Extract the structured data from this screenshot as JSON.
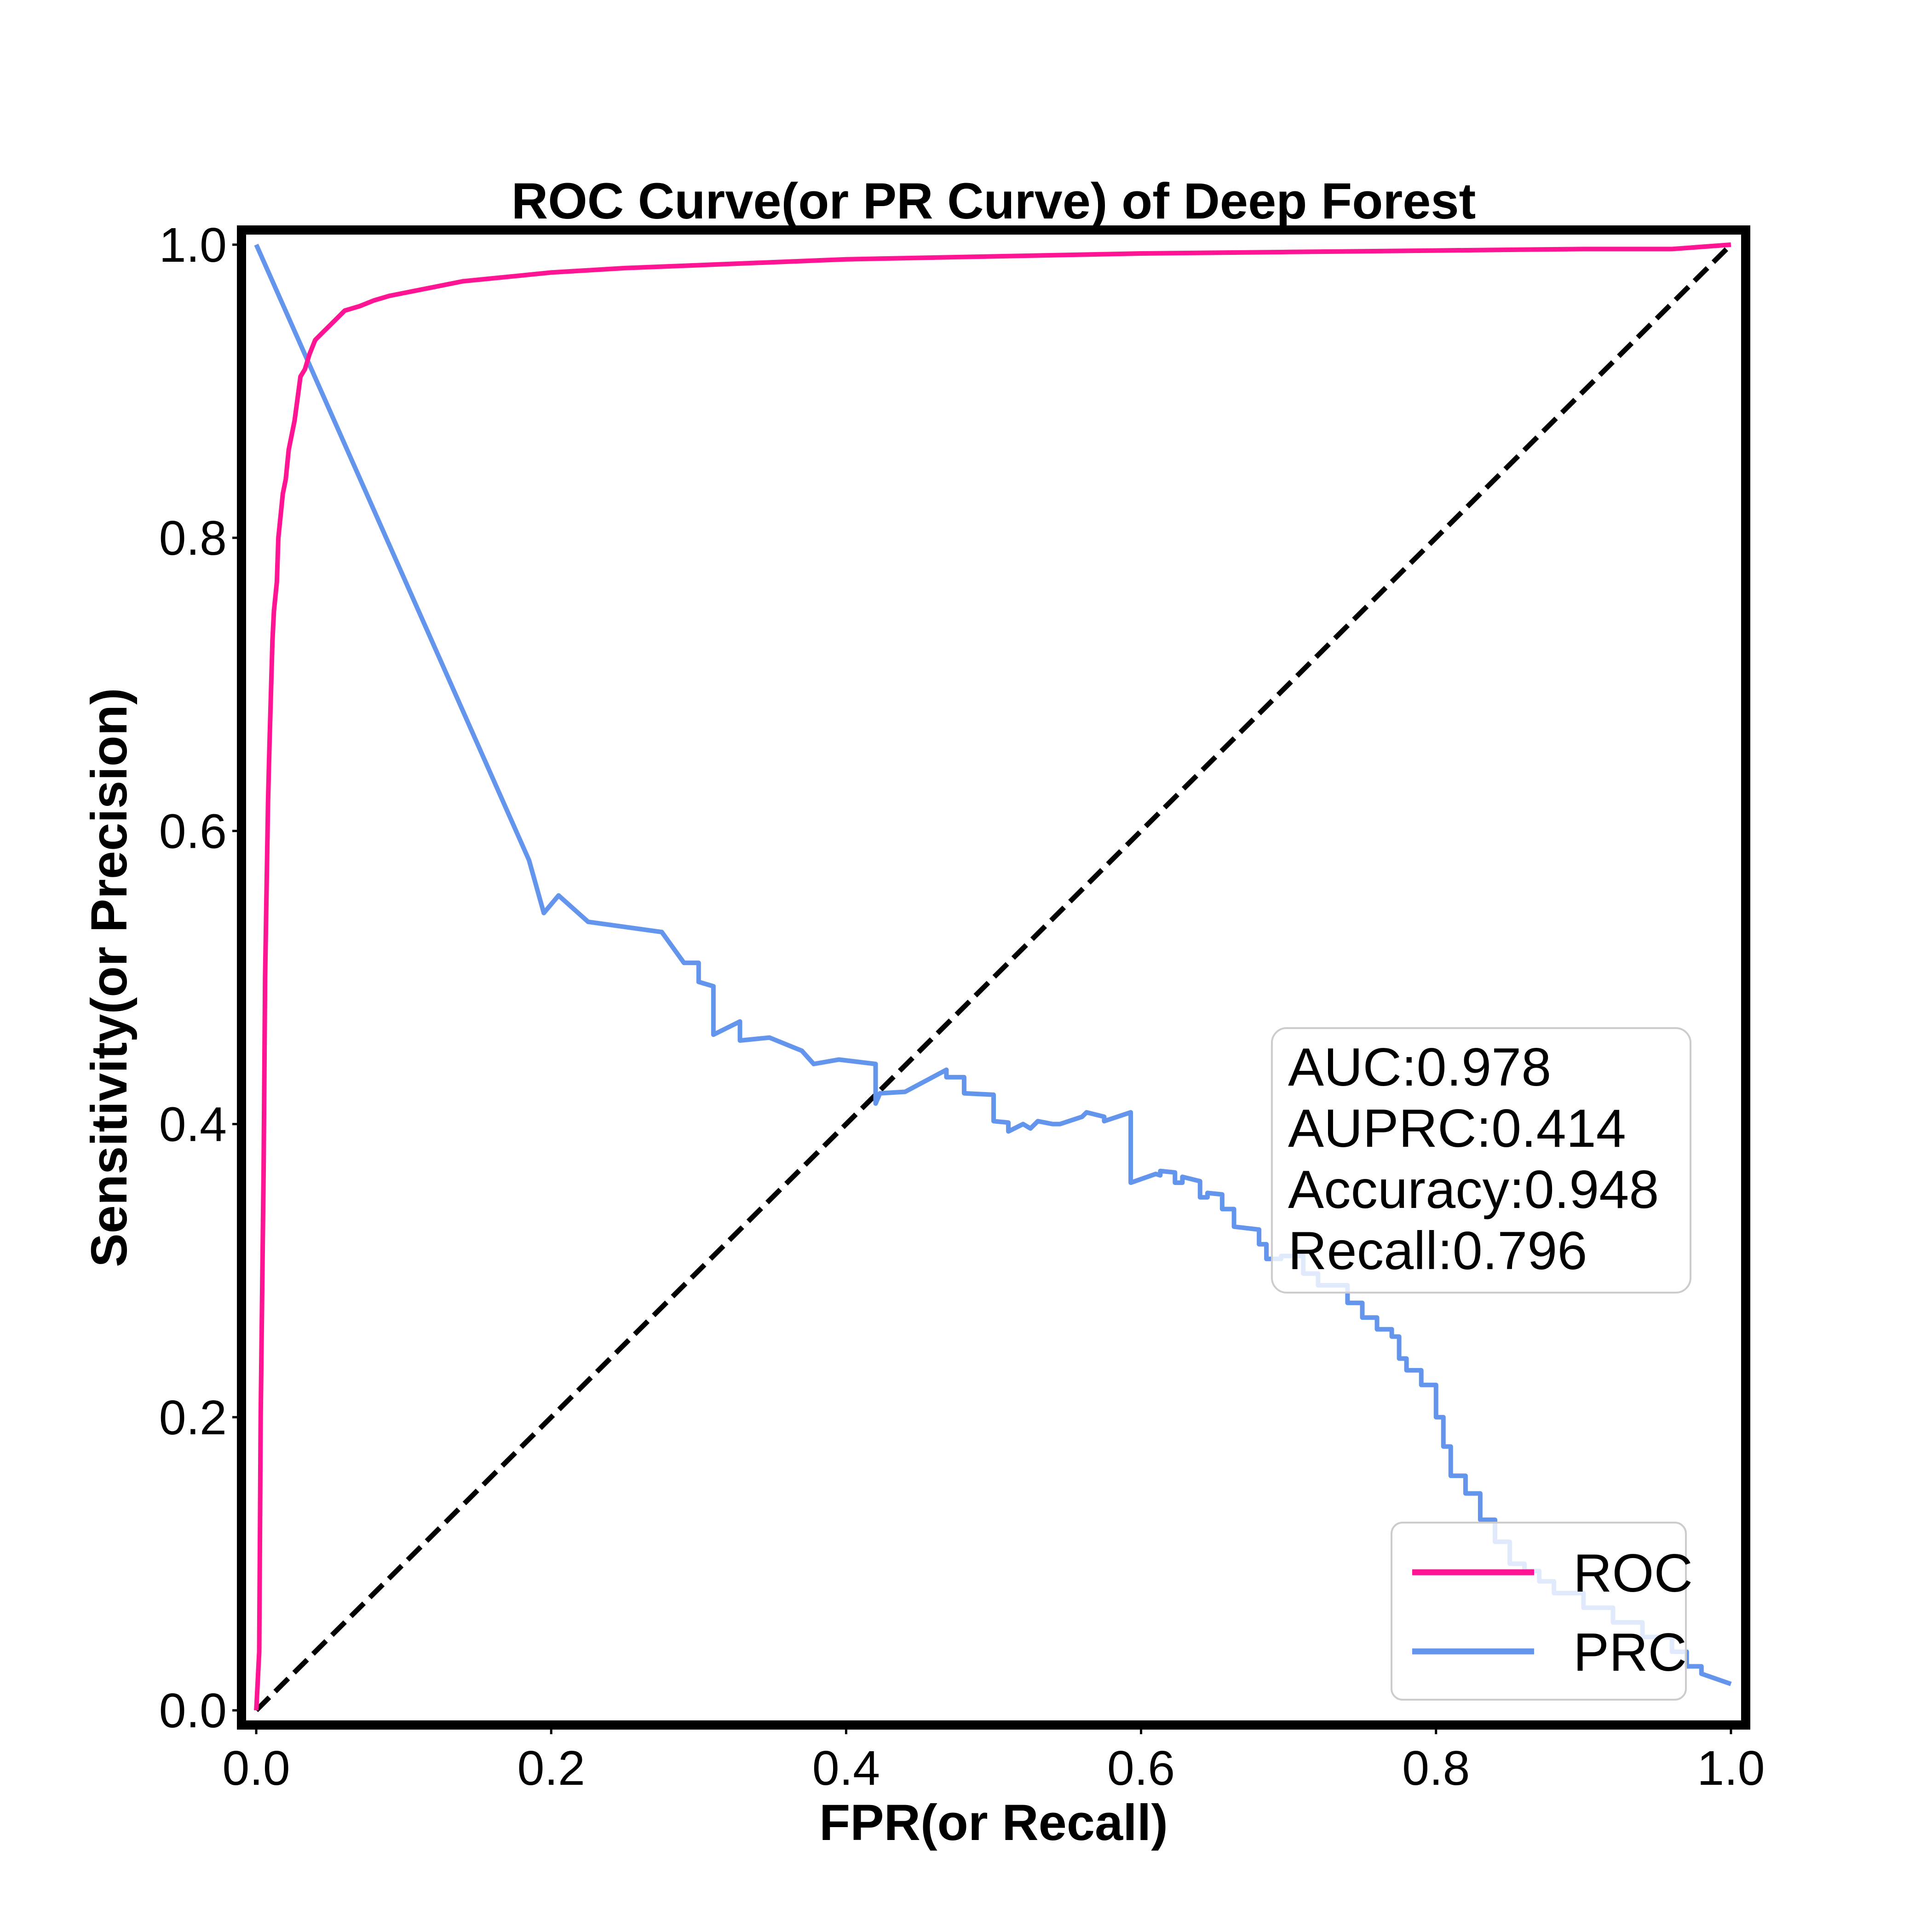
{
  "chart_data": {
    "type": "line",
    "title": "ROC Curve(or PR Curve) of Deep Forest",
    "xlabel": "FPR(or Recall)",
    "ylabel": "Sensitivity(or Precision)",
    "xlim": [
      -0.01,
      1.01
    ],
    "ylim": [
      -0.01,
      1.01
    ],
    "xticks": [
      0.0,
      0.2,
      0.4,
      0.6,
      0.8,
      1.0
    ],
    "yticks": [
      0.0,
      0.2,
      0.4,
      0.6,
      0.8,
      1.0
    ],
    "xtick_labels": [
      "0.0",
      "0.2",
      "0.4",
      "0.6",
      "0.8",
      "1.0"
    ],
    "ytick_labels": [
      "0.0",
      "0.2",
      "0.4",
      "0.6",
      "0.8",
      "1.0"
    ],
    "grid": false,
    "legend_position": "bottom-right",
    "series": [
      {
        "name": "ROC",
        "color": "#ff1493",
        "x": [
          0.0,
          0.002,
          0.003,
          0.005,
          0.006,
          0.008,
          0.009,
          0.011,
          0.012,
          0.014,
          0.015,
          0.017,
          0.018,
          0.02,
          0.022,
          0.024,
          0.026,
          0.028,
          0.03,
          0.033,
          0.036,
          0.04,
          0.045,
          0.05,
          0.055,
          0.06,
          0.07,
          0.08,
          0.09,
          0.1,
          0.12,
          0.14,
          0.16,
          0.18,
          0.2,
          0.25,
          0.3,
          0.35,
          0.4,
          0.5,
          0.6,
          0.7,
          0.8,
          0.9,
          0.96,
          1.0
        ],
        "y": [
          0.0,
          0.04,
          0.2,
          0.37,
          0.5,
          0.62,
          0.66,
          0.73,
          0.75,
          0.77,
          0.8,
          0.82,
          0.83,
          0.84,
          0.86,
          0.87,
          0.88,
          0.895,
          0.91,
          0.915,
          0.925,
          0.935,
          0.94,
          0.945,
          0.95,
          0.955,
          0.958,
          0.962,
          0.965,
          0.967,
          0.971,
          0.975,
          0.977,
          0.979,
          0.981,
          0.984,
          0.986,
          0.988,
          0.99,
          0.992,
          0.994,
          0.995,
          0.996,
          0.997,
          0.997,
          1.0
        ]
      },
      {
        "name": "PRC",
        "color": "#6495ed",
        "x": [
          0.0,
          0.185,
          0.195,
          0.205,
          0.225,
          0.275,
          0.29,
          0.3,
          0.3,
          0.31,
          0.31,
          0.328,
          0.328,
          0.348,
          0.37,
          0.378,
          0.395,
          0.42,
          0.42,
          0.423,
          0.44,
          0.468,
          0.468,
          0.48,
          0.48,
          0.5,
          0.5,
          0.51,
          0.51,
          0.52,
          0.525,
          0.53,
          0.54,
          0.545,
          0.56,
          0.563,
          0.575,
          0.575,
          0.593,
          0.593,
          0.61,
          0.613,
          0.613,
          0.623,
          0.623,
          0.628,
          0.628,
          0.64,
          0.64,
          0.645,
          0.645,
          0.655,
          0.655,
          0.663,
          0.663,
          0.68,
          0.68,
          0.685,
          0.685,
          0.695,
          0.695,
          0.71,
          0.71,
          0.72,
          0.72,
          0.74,
          0.74,
          0.75,
          0.75,
          0.76,
          0.76,
          0.77,
          0.77,
          0.775,
          0.775,
          0.78,
          0.78,
          0.79,
          0.79,
          0.8,
          0.8,
          0.805,
          0.805,
          0.81,
          0.81,
          0.82,
          0.82,
          0.83,
          0.83,
          0.84,
          0.84,
          0.85,
          0.85,
          0.86,
          0.86,
          0.87,
          0.87,
          0.88,
          0.88,
          0.9,
          0.9,
          0.92,
          0.92,
          0.94,
          0.94,
          0.96,
          0.96,
          0.97,
          0.97,
          0.98,
          0.98,
          1.0
        ],
        "y": [
          1.0,
          0.58,
          0.544,
          0.556,
          0.538,
          0.531,
          0.51,
          0.51,
          0.497,
          0.494,
          0.461,
          0.47,
          0.457,
          0.459,
          0.45,
          0.441,
          0.444,
          0.441,
          0.414,
          0.421,
          0.422,
          0.437,
          0.432,
          0.432,
          0.421,
          0.42,
          0.402,
          0.401,
          0.395,
          0.4,
          0.397,
          0.402,
          0.4,
          0.4,
          0.405,
          0.408,
          0.405,
          0.402,
          0.408,
          0.36,
          0.366,
          0.365,
          0.368,
          0.367,
          0.36,
          0.36,
          0.364,
          0.361,
          0.35,
          0.35,
          0.353,
          0.352,
          0.342,
          0.342,
          0.33,
          0.328,
          0.318,
          0.318,
          0.308,
          0.308,
          0.31,
          0.31,
          0.298,
          0.298,
          0.29,
          0.29,
          0.278,
          0.278,
          0.268,
          0.268,
          0.26,
          0.26,
          0.255,
          0.255,
          0.24,
          0.24,
          0.232,
          0.232,
          0.222,
          0.222,
          0.2,
          0.2,
          0.18,
          0.18,
          0.16,
          0.16,
          0.148,
          0.148,
          0.13,
          0.13,
          0.115,
          0.115,
          0.1,
          0.1,
          0.095,
          0.095,
          0.088,
          0.088,
          0.08,
          0.08,
          0.07,
          0.07,
          0.06,
          0.06,
          0.05,
          0.05,
          0.04,
          0.04,
          0.03,
          0.03,
          0.025,
          0.018
        ]
      },
      {
        "name": "",
        "color": "#000000",
        "dashed": true,
        "x": [
          0.0,
          1.0
        ],
        "y": [
          0.0,
          1.0
        ]
      }
    ],
    "annotation_lines": [
      "AUC:0.978",
      "AUPRC:0.414",
      "Accuracy:0.948",
      "Recall:0.796"
    ]
  }
}
